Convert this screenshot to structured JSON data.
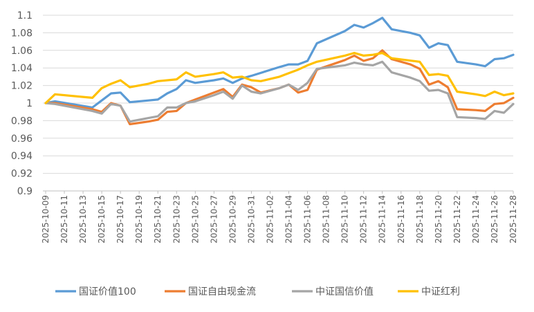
{
  "chart_data": {
    "type": "line",
    "title": "",
    "xlabel": "",
    "ylabel": "",
    "ylim": [
      0.9,
      1.1
    ],
    "yticks": [
      0.9,
      0.92,
      0.94,
      0.96,
      0.98,
      1,
      1.02,
      1.04,
      1.06,
      1.08,
      1.1
    ],
    "ytick_labels": [
      "0.9",
      "0.92",
      "0.94",
      "0.96",
      "0.98",
      "1",
      "1.02",
      "1.04",
      "1.06",
      "1.08",
      "1.1"
    ],
    "x": [
      "2025-10-09",
      "2025-10-10",
      "2025-10-11",
      "2025-10-12",
      "2025-10-13",
      "2025-10-14",
      "2025-10-15",
      "2025-10-16",
      "2025-10-17",
      "2025-10-18",
      "2025-10-19",
      "2025-10-20",
      "2025-10-21",
      "2025-10-22",
      "2025-10-23",
      "2025-10-24",
      "2025-10-25",
      "2025-10-26",
      "2025-10-27",
      "2025-10-28",
      "2025-10-29",
      "2025-10-30",
      "2025-10-31",
      "2025-11-01",
      "2025-11-02",
      "2025-11-03",
      "2025-11-04",
      "2025-11-05",
      "2025-11-06",
      "2025-11-07",
      "2025-11-08",
      "2025-11-09",
      "2025-11-10",
      "2025-11-11",
      "2025-11-12",
      "2025-11-13",
      "2025-11-14",
      "2025-11-15",
      "2025-11-16",
      "2025-11-17",
      "2025-11-18",
      "2025-11-19",
      "2025-11-20",
      "2025-11-21",
      "2025-11-22",
      "2025-11-23",
      "2025-11-24",
      "2025-11-25",
      "2025-11-26",
      "2025-11-27",
      "2025-11-28"
    ],
    "xtick_labels": [
      "2025-10-09",
      "2025-10-11",
      "2025-10-13",
      "2025-10-15",
      "2025-10-17",
      "2025-10-19",
      "2025-10-21",
      "2025-10-23",
      "2025-10-25",
      "2025-10-27",
      "2025-10-29",
      "2025-10-31",
      "2025-11-02",
      "2025-11-04",
      "2025-11-06",
      "2025-11-08",
      "2025-11-10",
      "2025-11-12",
      "2025-11-14",
      "2025-11-16",
      "2025-11-18",
      "2025-11-20",
      "2025-11-22",
      "2025-11-24",
      "2025-11-26",
      "2025-11-28"
    ],
    "legend_position": "bottom",
    "grid": "horizontal",
    "series": [
      {
        "name": "国证价值100",
        "color": "#5B9BD5",
        "points": [
          [
            "2025-10-09",
            1.0
          ],
          [
            "2025-10-10",
            1.002
          ],
          [
            "2025-10-14",
            0.995
          ],
          [
            "2025-10-15",
            1.003
          ],
          [
            "2025-10-16",
            1.011
          ],
          [
            "2025-10-17",
            1.012
          ],
          [
            "2025-10-18",
            1.001
          ],
          [
            "2025-10-20",
            1.003
          ],
          [
            "2025-10-21",
            1.004
          ],
          [
            "2025-10-22",
            1.011
          ],
          [
            "2025-10-23",
            1.016
          ],
          [
            "2025-10-24",
            1.026
          ],
          [
            "2025-10-25",
            1.023
          ],
          [
            "2025-10-27",
            1.026
          ],
          [
            "2025-10-28",
            1.028
          ],
          [
            "2025-10-29",
            1.023
          ],
          [
            "2025-10-30",
            1.028
          ],
          [
            "2025-10-31",
            1.031
          ],
          [
            "2025-11-03",
            1.041
          ],
          [
            "2025-11-04",
            1.044
          ],
          [
            "2025-11-05",
            1.044
          ],
          [
            "2025-11-06",
            1.048
          ],
          [
            "2025-11-07",
            1.068
          ],
          [
            "2025-11-10",
            1.082
          ],
          [
            "2025-11-11",
            1.089
          ],
          [
            "2025-11-12",
            1.086
          ],
          [
            "2025-11-13",
            1.091
          ],
          [
            "2025-11-14",
            1.097
          ],
          [
            "2025-11-15",
            1.084
          ],
          [
            "2025-11-17",
            1.08
          ],
          [
            "2025-11-18",
            1.077
          ],
          [
            "2025-11-19",
            1.063
          ],
          [
            "2025-11-20",
            1.068
          ],
          [
            "2025-11-21",
            1.066
          ],
          [
            "2025-11-22",
            1.047
          ],
          [
            "2025-11-24",
            1.044
          ],
          [
            "2025-11-25",
            1.042
          ],
          [
            "2025-11-26",
            1.05
          ],
          [
            "2025-11-27",
            1.051
          ],
          [
            "2025-11-28",
            1.055
          ]
        ]
      },
      {
        "name": "国证自由现金流",
        "color": "#ED7D31",
        "points": [
          [
            "2025-10-09",
            1.0
          ],
          [
            "2025-10-10",
            1.0
          ],
          [
            "2025-10-14",
            0.993
          ],
          [
            "2025-10-15",
            0.99
          ],
          [
            "2025-10-16",
            1.0
          ],
          [
            "2025-10-17",
            0.997
          ],
          [
            "2025-10-18",
            0.976
          ],
          [
            "2025-10-20",
            0.979
          ],
          [
            "2025-10-21",
            0.981
          ],
          [
            "2025-10-22",
            0.99
          ],
          [
            "2025-10-23",
            0.991
          ],
          [
            "2025-10-24",
            1.0
          ],
          [
            "2025-10-25",
            1.004
          ],
          [
            "2025-10-27",
            1.012
          ],
          [
            "2025-10-28",
            1.016
          ],
          [
            "2025-10-29",
            1.007
          ],
          [
            "2025-10-30",
            1.021
          ],
          [
            "2025-10-31",
            1.018
          ],
          [
            "2025-11-01",
            1.012
          ],
          [
            "2025-11-03",
            1.017
          ],
          [
            "2025-11-04",
            1.021
          ],
          [
            "2025-11-05",
            1.012
          ],
          [
            "2025-11-06",
            1.015
          ],
          [
            "2025-11-07",
            1.038
          ],
          [
            "2025-11-10",
            1.049
          ],
          [
            "2025-11-11",
            1.054
          ],
          [
            "2025-11-12",
            1.048
          ],
          [
            "2025-11-13",
            1.051
          ],
          [
            "2025-11-14",
            1.06
          ],
          [
            "2025-11-15",
            1.05
          ],
          [
            "2025-11-17",
            1.044
          ],
          [
            "2025-11-18",
            1.039
          ],
          [
            "2025-11-19",
            1.021
          ],
          [
            "2025-11-20",
            1.025
          ],
          [
            "2025-11-21",
            1.018
          ],
          [
            "2025-11-22",
            0.993
          ],
          [
            "2025-11-24",
            0.992
          ],
          [
            "2025-11-25",
            0.991
          ],
          [
            "2025-11-26",
            0.999
          ],
          [
            "2025-11-27",
            1.0
          ],
          [
            "2025-11-28",
            1.006
          ]
        ]
      },
      {
        "name": "中证国信价值",
        "color": "#A5A5A5",
        "points": [
          [
            "2025-10-09",
            1.0
          ],
          [
            "2025-10-10",
            0.999
          ],
          [
            "2025-10-14",
            0.991
          ],
          [
            "2025-10-15",
            0.988
          ],
          [
            "2025-10-16",
            0.999
          ],
          [
            "2025-10-17",
            0.997
          ],
          [
            "2025-10-18",
            0.979
          ],
          [
            "2025-10-20",
            0.983
          ],
          [
            "2025-10-21",
            0.985
          ],
          [
            "2025-10-22",
            0.995
          ],
          [
            "2025-10-23",
            0.995
          ],
          [
            "2025-10-24",
            1.0
          ],
          [
            "2025-10-25",
            1.002
          ],
          [
            "2025-10-27",
            1.009
          ],
          [
            "2025-10-28",
            1.013
          ],
          [
            "2025-10-29",
            1.005
          ],
          [
            "2025-10-30",
            1.02
          ],
          [
            "2025-10-31",
            1.013
          ],
          [
            "2025-11-01",
            1.011
          ],
          [
            "2025-11-03",
            1.017
          ],
          [
            "2025-11-04",
            1.021
          ],
          [
            "2025-11-05",
            1.015
          ],
          [
            "2025-11-06",
            1.023
          ],
          [
            "2025-11-07",
            1.039
          ],
          [
            "2025-11-10",
            1.043
          ],
          [
            "2025-11-11",
            1.046
          ],
          [
            "2025-11-12",
            1.044
          ],
          [
            "2025-11-13",
            1.043
          ],
          [
            "2025-11-14",
            1.047
          ],
          [
            "2025-11-15",
            1.035
          ],
          [
            "2025-11-17",
            1.029
          ],
          [
            "2025-11-18",
            1.025
          ],
          [
            "2025-11-19",
            1.014
          ],
          [
            "2025-11-20",
            1.015
          ],
          [
            "2025-11-21",
            1.011
          ],
          [
            "2025-11-22",
            0.984
          ],
          [
            "2025-11-24",
            0.983
          ],
          [
            "2025-11-25",
            0.982
          ],
          [
            "2025-11-26",
            0.991
          ],
          [
            "2025-11-27",
            0.989
          ],
          [
            "2025-11-28",
            0.999
          ]
        ]
      },
      {
        "name": "中证红利",
        "color": "#FFC000",
        "points": [
          [
            "2025-10-09",
            1.0
          ],
          [
            "2025-10-10",
            1.01
          ],
          [
            "2025-10-14",
            1.006
          ],
          [
            "2025-10-15",
            1.017
          ],
          [
            "2025-10-16",
            1.022
          ],
          [
            "2025-10-17",
            1.026
          ],
          [
            "2025-10-18",
            1.018
          ],
          [
            "2025-10-20",
            1.022
          ],
          [
            "2025-10-21",
            1.025
          ],
          [
            "2025-10-23",
            1.027
          ],
          [
            "2025-10-24",
            1.035
          ],
          [
            "2025-10-25",
            1.03
          ],
          [
            "2025-10-27",
            1.033
          ],
          [
            "2025-10-28",
            1.035
          ],
          [
            "2025-10-29",
            1.029
          ],
          [
            "2025-10-30",
            1.03
          ],
          [
            "2025-10-31",
            1.026
          ],
          [
            "2025-11-01",
            1.025
          ],
          [
            "2025-11-03",
            1.03
          ],
          [
            "2025-11-04",
            1.034
          ],
          [
            "2025-11-05",
            1.038
          ],
          [
            "2025-11-06",
            1.043
          ],
          [
            "2025-11-07",
            1.047
          ],
          [
            "2025-11-10",
            1.054
          ],
          [
            "2025-11-11",
            1.057
          ],
          [
            "2025-11-12",
            1.054
          ],
          [
            "2025-11-13",
            1.055
          ],
          [
            "2025-11-14",
            1.057
          ],
          [
            "2025-11-15",
            1.051
          ],
          [
            "2025-11-18",
            1.047
          ],
          [
            "2025-11-19",
            1.032
          ],
          [
            "2025-11-20",
            1.033
          ],
          [
            "2025-11-21",
            1.031
          ],
          [
            "2025-11-22",
            1.013
          ],
          [
            "2025-11-24",
            1.01
          ],
          [
            "2025-11-25",
            1.008
          ],
          [
            "2025-11-26",
            1.013
          ],
          [
            "2025-11-27",
            1.009
          ],
          [
            "2025-11-28",
            1.011
          ]
        ]
      }
    ]
  }
}
